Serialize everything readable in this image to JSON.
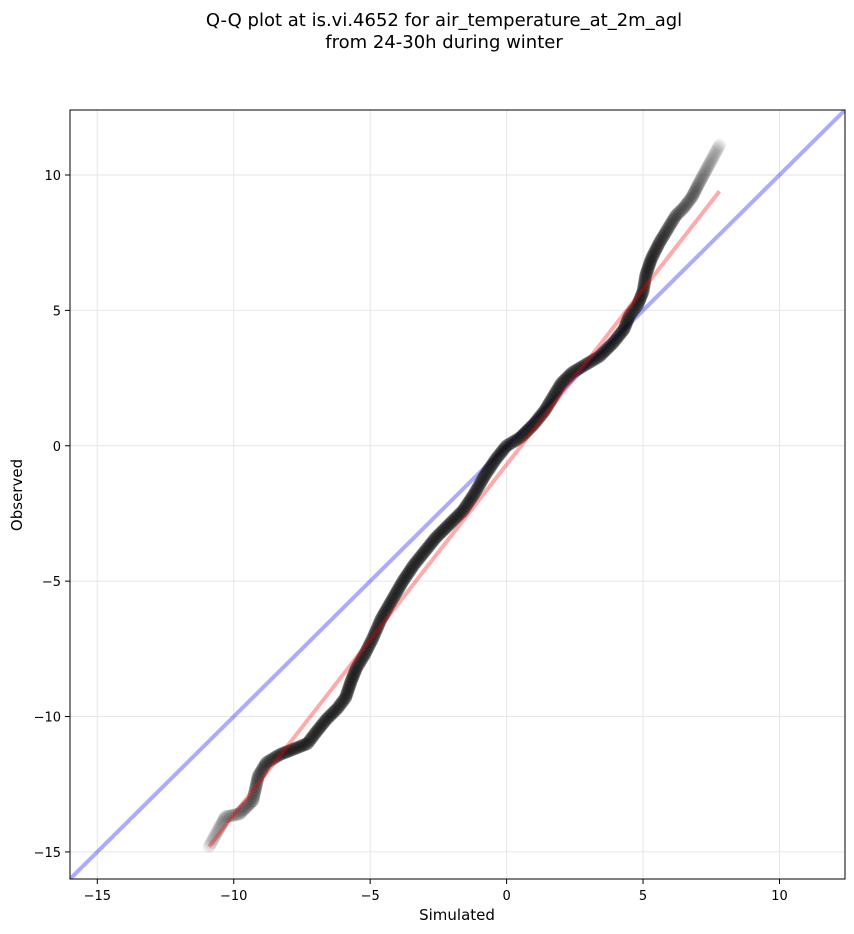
{
  "chart_data": {
    "type": "scatter",
    "title_line1": "Q-Q plot at is.vi.4652 for air_temperature_at_2m_agl",
    "title_line2": "from 24-30h during winter",
    "xlabel": "Simulated",
    "ylabel": "Observed",
    "xlim": [
      -16.0,
      12.4
    ],
    "ylim": [
      -16.0,
      12.4
    ],
    "xticks": [
      -15,
      -10,
      -5,
      0,
      5,
      10
    ],
    "yticks": [
      -15,
      -10,
      -5,
      0,
      5,
      10
    ],
    "xtick_labels": [
      "−15",
      "−10",
      "−5",
      "0",
      "5",
      "10"
    ],
    "ytick_labels": [
      "−15",
      "−10",
      "−5",
      "0",
      "5",
      "10"
    ],
    "grid": true,
    "reference_line_1to1": {
      "color": "#0000ff",
      "from": [
        -16.0,
        -16.0
      ],
      "to": [
        12.4,
        12.4
      ]
    },
    "fit_line": {
      "color": "#ff0000",
      "from": [
        -10.9,
        -14.8
      ],
      "to": [
        7.8,
        9.4
      ]
    },
    "point_color": "#000000",
    "quantile_path": [
      [
        -10.9,
        -14.8
      ],
      [
        -10.3,
        -13.7
      ],
      [
        -9.8,
        -13.6
      ],
      [
        -9.3,
        -13.1
      ],
      [
        -9.1,
        -12.2
      ],
      [
        -8.8,
        -11.7
      ],
      [
        -8.3,
        -11.4
      ],
      [
        -7.8,
        -11.2
      ],
      [
        -7.3,
        -11.0
      ],
      [
        -7.0,
        -10.6
      ],
      [
        -6.6,
        -10.1
      ],
      [
        -6.2,
        -9.7
      ],
      [
        -5.9,
        -9.3
      ],
      [
        -5.7,
        -8.7
      ],
      [
        -5.5,
        -8.2
      ],
      [
        -5.2,
        -7.7
      ],
      [
        -4.9,
        -7.1
      ],
      [
        -4.6,
        -6.4
      ],
      [
        -4.2,
        -5.7
      ],
      [
        -3.8,
        -5.0
      ],
      [
        -3.4,
        -4.4
      ],
      [
        -3.0,
        -3.9
      ],
      [
        -2.6,
        -3.4
      ],
      [
        -2.1,
        -2.9
      ],
      [
        -1.6,
        -2.4
      ],
      [
        -1.2,
        -1.8
      ],
      [
        -0.8,
        -1.1
      ],
      [
        -0.4,
        -0.5
      ],
      [
        0.0,
        0.0
      ],
      [
        0.5,
        0.3
      ],
      [
        1.0,
        0.8
      ],
      [
        1.4,
        1.3
      ],
      [
        1.7,
        1.8
      ],
      [
        2.0,
        2.3
      ],
      [
        2.4,
        2.7
      ],
      [
        2.9,
        3.0
      ],
      [
        3.4,
        3.3
      ],
      [
        3.9,
        3.8
      ],
      [
        4.3,
        4.3
      ],
      [
        4.5,
        4.8
      ],
      [
        4.8,
        5.2
      ],
      [
        5.0,
        5.7
      ],
      [
        5.1,
        6.3
      ],
      [
        5.3,
        6.9
      ],
      [
        5.6,
        7.5
      ],
      [
        5.9,
        8.0
      ],
      [
        6.2,
        8.5
      ],
      [
        6.5,
        8.8
      ],
      [
        6.8,
        9.2
      ],
      [
        7.0,
        9.6
      ],
      [
        7.8,
        11.1
      ]
    ]
  }
}
